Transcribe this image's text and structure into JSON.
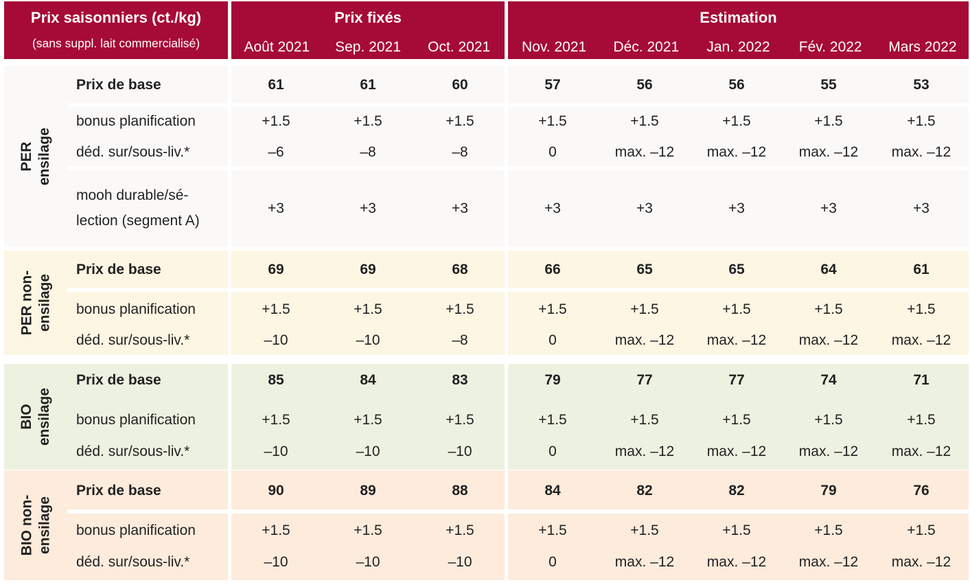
{
  "header": {
    "title": "Prix saisonniers (ct./kg)",
    "subtitle": "(sans suppl. lait commercialisé)",
    "fixed_label": "Prix fixés",
    "estimate_label": "Estimation",
    "months_fixed": [
      "Août 2021",
      "Sep. 2021",
      "Oct. 2021"
    ],
    "months_estimate": [
      "Nov. 2021",
      "Déc. 2021",
      "Jan. 2022",
      "Fév. 2022",
      "Mars 2022"
    ]
  },
  "colors": {
    "header": "#a60a36",
    "per_ensilage": "#fbf9f8",
    "per_non_ensilage": "#fdf6e3",
    "bio_ensilage": "#edf2e0",
    "bio_non_ensilage": "#fdebdc"
  },
  "groups": [
    {
      "label_line1": "PER",
      "label_line2": "ensilage",
      "rows": [
        {
          "label": "Prix de base",
          "values": [
            "61",
            "61",
            "60",
            "57",
            "56",
            "56",
            "55",
            "53"
          ]
        },
        {
          "label": "bonus planification",
          "values": [
            "+1.5",
            "+1.5",
            "+1.5",
            "+1.5",
            "+1.5",
            "+1.5",
            "+1.5",
            "+1.5"
          ]
        },
        {
          "label": "déd. sur/sous-liv.*",
          "values": [
            "–6",
            "–8",
            "–8",
            "0",
            "max. –12",
            "max. –12",
            "max. –12",
            "max. –12"
          ]
        },
        {
          "label_line1": "mooh durable/sé-",
          "label_line2": "lection (segment A)",
          "values": [
            "+3",
            "+3",
            "+3",
            "+3",
            "+3",
            "+3",
            "+3",
            "+3"
          ]
        }
      ]
    },
    {
      "label_line1": "PER non-",
      "label_line2": "ensilage",
      "rows": [
        {
          "label": "Prix de base",
          "values": [
            "69",
            "69",
            "68",
            "66",
            "65",
            "65",
            "64",
            "61"
          ]
        },
        {
          "label": "bonus planification",
          "values": [
            "+1.5",
            "+1.5",
            "+1.5",
            "+1.5",
            "+1.5",
            "+1.5",
            "+1.5",
            "+1.5"
          ]
        },
        {
          "label": "déd. sur/sous-liv.*",
          "values": [
            "–10",
            "–10",
            "–8",
            "0",
            "max. –12",
            "max. –12",
            "max. –12",
            "max. –12"
          ]
        }
      ]
    },
    {
      "label_line1": "BIO",
      "label_line2": "ensilage",
      "rows": [
        {
          "label": "Prix de base",
          "values": [
            "85",
            "84",
            "83",
            "79",
            "77",
            "77",
            "74",
            "71"
          ]
        },
        {
          "label": "bonus planification",
          "values": [
            "+1.5",
            "+1.5",
            "+1.5",
            "+1.5",
            "+1.5",
            "+1.5",
            "+1.5",
            "+1.5"
          ]
        },
        {
          "label": "déd. sur/sous-liv.*",
          "values": [
            "–10",
            "–10",
            "–10",
            "0",
            "max. –12",
            "max. –12",
            "max. –12",
            "max. –12"
          ]
        }
      ]
    },
    {
      "label_line1": "BIO non-",
      "label_line2": "ensilage",
      "rows": [
        {
          "label": "Prix de base",
          "values": [
            "90",
            "89",
            "88",
            "84",
            "82",
            "82",
            "79",
            "76"
          ]
        },
        {
          "label": "bonus planification",
          "values": [
            "+1.5",
            "+1.5",
            "+1.5",
            "+1.5",
            "+1.5",
            "+1.5",
            "+1.5",
            "+1.5"
          ]
        },
        {
          "label": "déd. sur/sous-liv.*",
          "values": [
            "–10",
            "–10",
            "–10",
            "0",
            "max. –12",
            "max. –12",
            "max. –12",
            "max. –12"
          ]
        }
      ]
    }
  ]
}
